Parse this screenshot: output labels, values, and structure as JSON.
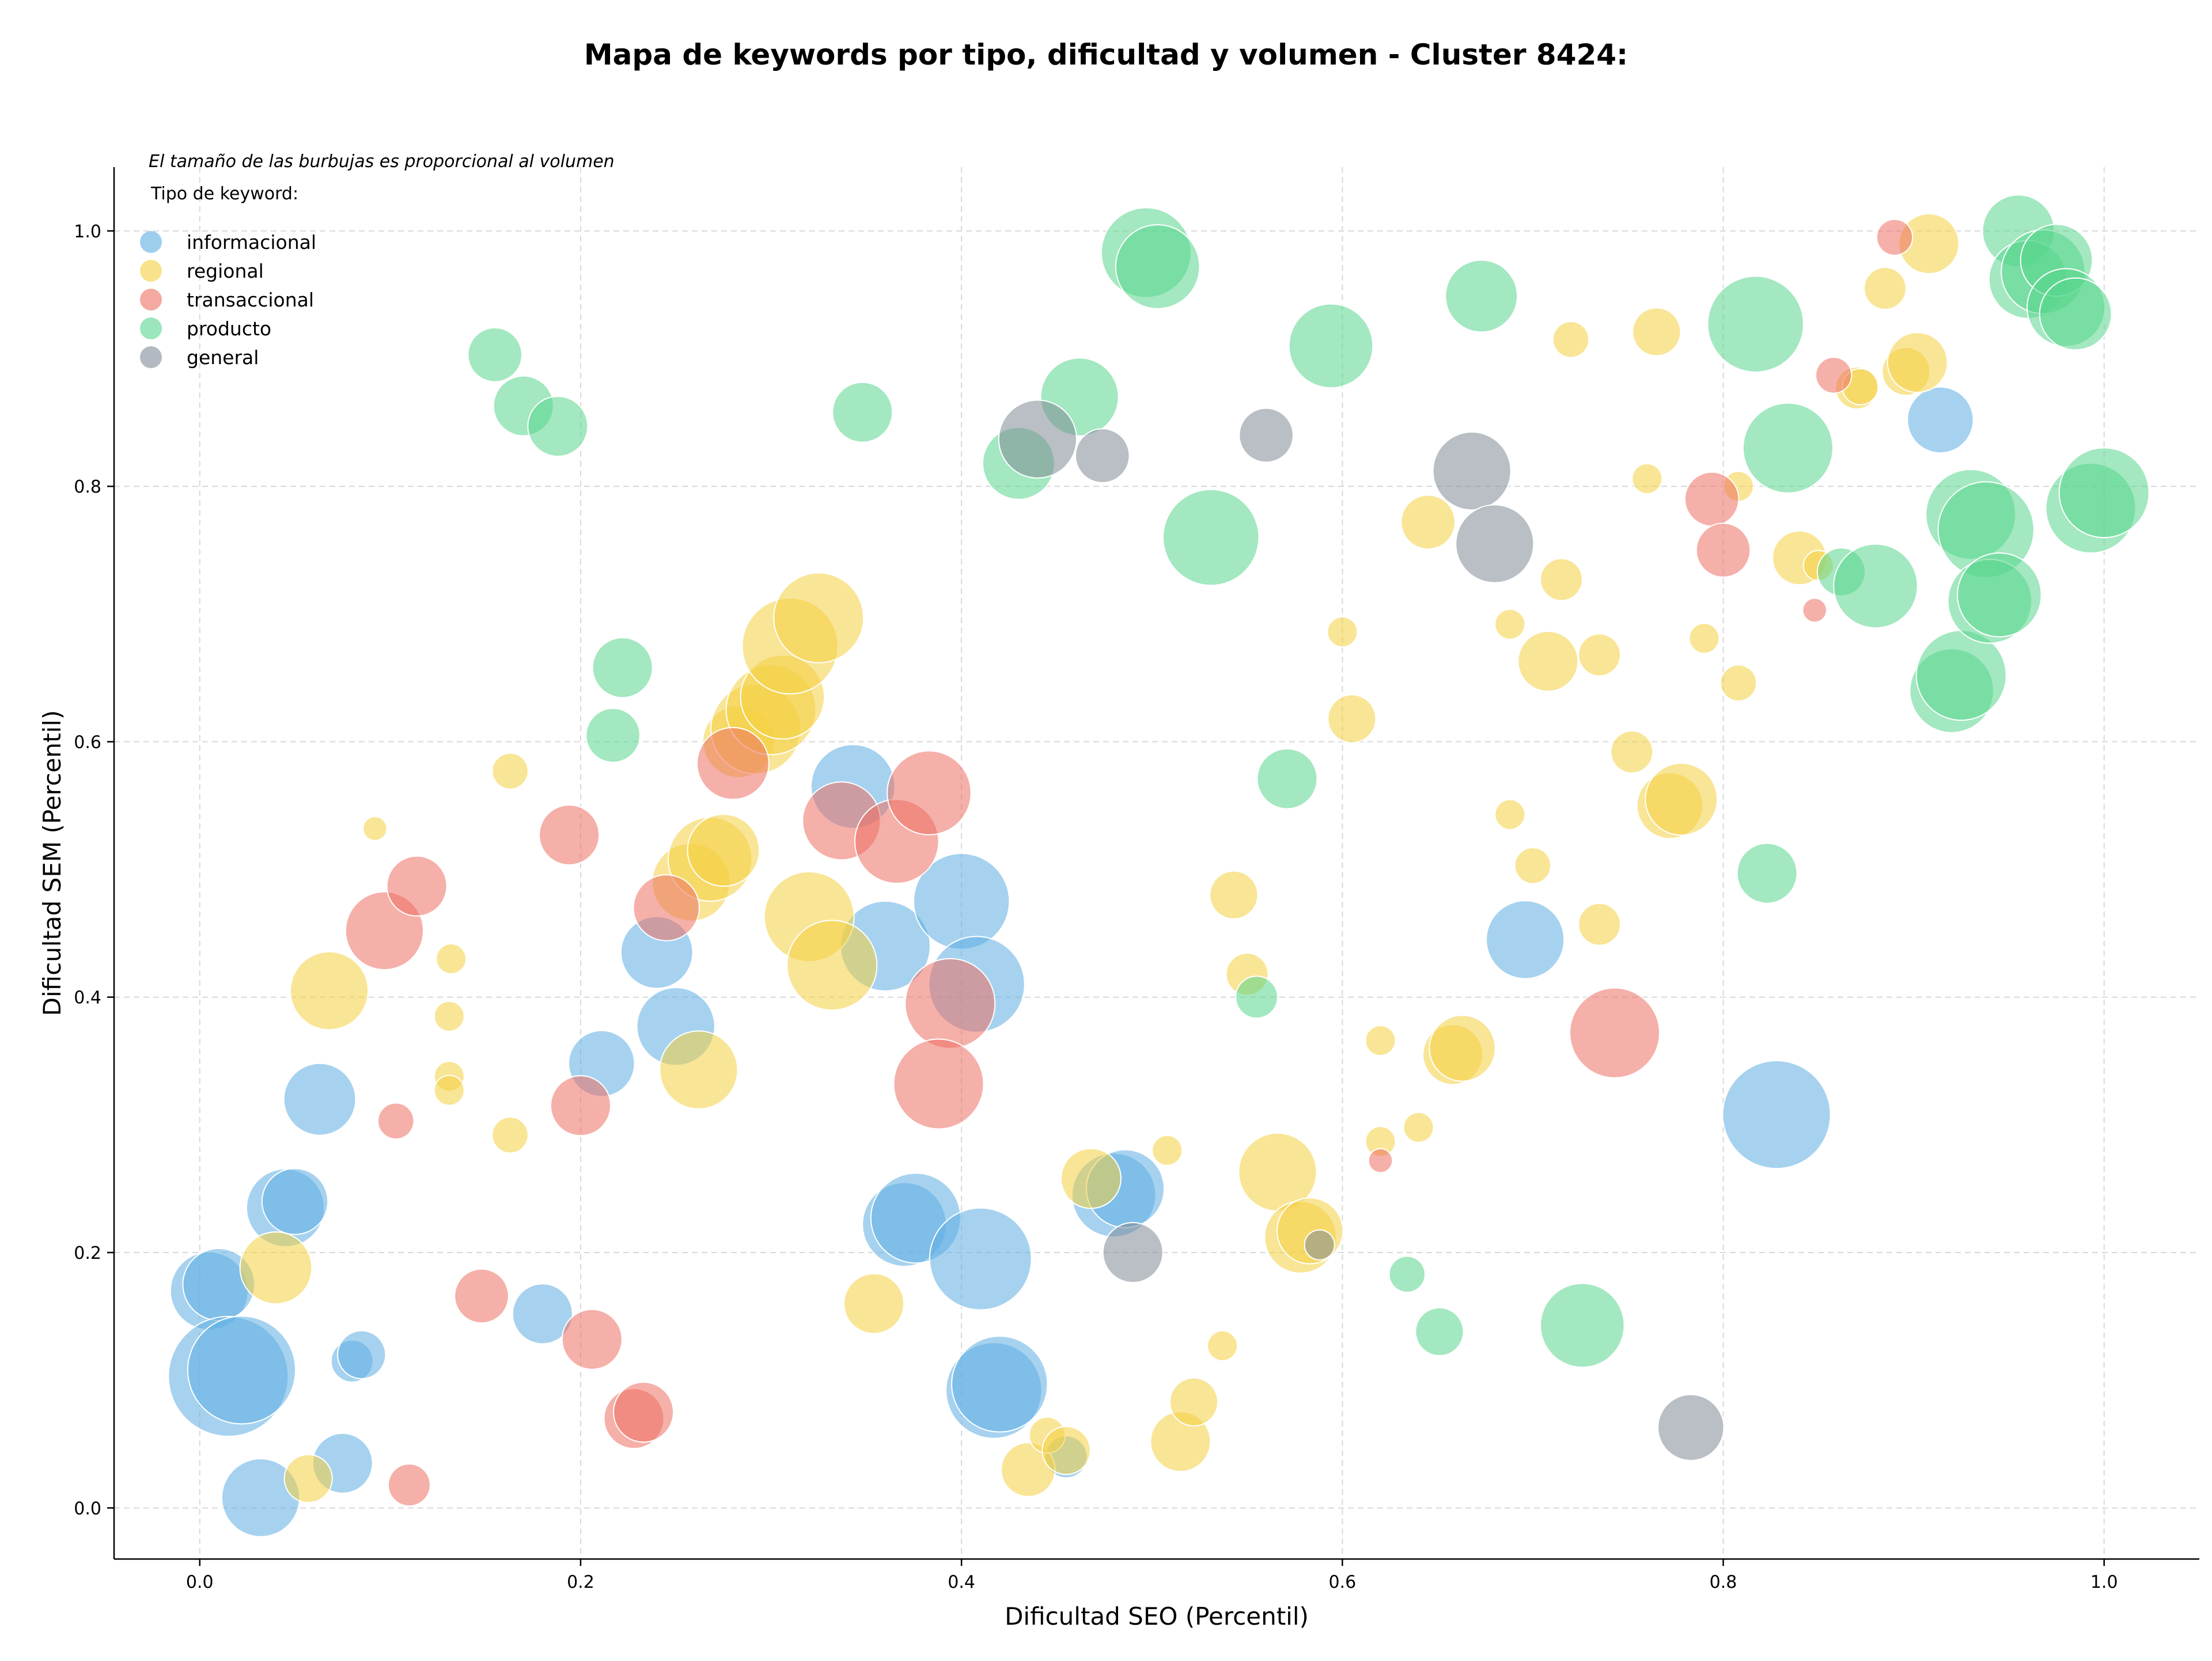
{
  "chart_data": {
    "type": "scatter",
    "title": "Mapa de keywords por tipo, dificultad y volumen - Cluster 8424:",
    "xlabel": "Dificultad SEO (Percentil)",
    "ylabel": "Dificultad SEM (Percentil)",
    "xlim": [
      -0.045,
      1.05
    ],
    "ylim": [
      -0.04,
      1.05
    ],
    "xticks": [
      "0.0",
      "0.2",
      "0.4",
      "0.6",
      "0.8",
      "1.0"
    ],
    "yticks": [
      "0.0",
      "0.2",
      "0.4",
      "0.6",
      "0.8",
      "1.0"
    ],
    "grid": true,
    "note": "El tamaño de las burbujas es proporcional al volumen",
    "legend": {
      "title": "Tipo de keyword:",
      "placement": "top-left"
    },
    "series": [
      {
        "name": "informacional",
        "color": "#5dade2",
        "points": [
          [
            0.005,
            0.17,
            1.3
          ],
          [
            0.01,
            0.175,
            1.2
          ],
          [
            0.015,
            0.103,
            2.0
          ],
          [
            0.022,
            0.108,
            1.8
          ],
          [
            0.032,
            0.008,
            1.3
          ],
          [
            0.045,
            0.235,
            1.3
          ],
          [
            0.05,
            0.24,
            1.1
          ],
          [
            0.063,
            0.32,
            1.2
          ],
          [
            0.075,
            0.035,
            1.0
          ],
          [
            0.08,
            0.115,
            0.7
          ],
          [
            0.085,
            0.12,
            0.8
          ],
          [
            0.18,
            0.152,
            1.0
          ],
          [
            0.211,
            0.348,
            1.1
          ],
          [
            0.24,
            0.435,
            1.2
          ],
          [
            0.25,
            0.377,
            1.3
          ],
          [
            0.343,
            0.565,
            1.4
          ],
          [
            0.36,
            0.44,
            1.5
          ],
          [
            0.37,
            0.222,
            1.4
          ],
          [
            0.376,
            0.227,
            1.5
          ],
          [
            0.4,
            0.475,
            1.6
          ],
          [
            0.41,
            0.195,
            1.7
          ],
          [
            0.408,
            0.41,
            1.6
          ],
          [
            0.417,
            0.092,
            1.6
          ],
          [
            0.42,
            0.097,
            1.6
          ],
          [
            0.455,
            0.04,
            0.7
          ],
          [
            0.48,
            0.245,
            1.4
          ],
          [
            0.486,
            0.25,
            1.3
          ],
          [
            0.696,
            0.445,
            1.3
          ],
          [
            0.828,
            0.308,
            1.8
          ],
          [
            0.914,
            0.852,
            1.1
          ]
        ]
      },
      {
        "name": "regional",
        "color": "#f4d03f",
        "points": [
          [
            0.04,
            0.188,
            1.2
          ],
          [
            0.057,
            0.023,
            0.8
          ],
          [
            0.068,
            0.405,
            1.3
          ],
          [
            0.092,
            0.532,
            0.4
          ],
          [
            0.131,
            0.338,
            0.5
          ],
          [
            0.131,
            0.327,
            0.5
          ],
          [
            0.131,
            0.385,
            0.5
          ],
          [
            0.132,
            0.43,
            0.5
          ],
          [
            0.163,
            0.577,
            0.6
          ],
          [
            0.163,
            0.292,
            0.6
          ],
          [
            0.262,
            0.343,
            1.3
          ],
          [
            0.258,
            0.49,
            1.3
          ],
          [
            0.268,
            0.508,
            1.4
          ],
          [
            0.275,
            0.515,
            1.2
          ],
          [
            0.283,
            0.6,
            1.2
          ],
          [
            0.292,
            0.61,
            1.5
          ],
          [
            0.3,
            0.625,
            1.5
          ],
          [
            0.306,
            0.635,
            1.4
          ],
          [
            0.31,
            0.675,
            1.6
          ],
          [
            0.325,
            0.697,
            1.5
          ],
          [
            0.32,
            0.463,
            1.5
          ],
          [
            0.332,
            0.425,
            1.5
          ],
          [
            0.354,
            0.16,
            1.0
          ],
          [
            0.435,
            0.03,
            0.9
          ],
          [
            0.445,
            0.057,
            0.6
          ],
          [
            0.455,
            0.045,
            0.8
          ],
          [
            0.468,
            0.258,
            1.0
          ],
          [
            0.508,
            0.28,
            0.5
          ],
          [
            0.515,
            0.052,
            1.0
          ],
          [
            0.522,
            0.083,
            0.8
          ],
          [
            0.537,
            0.127,
            0.5
          ],
          [
            0.543,
            0.48,
            0.8
          ],
          [
            0.55,
            0.418,
            0.7
          ],
          [
            0.566,
            0.263,
            1.3
          ],
          [
            0.578,
            0.212,
            1.2
          ],
          [
            0.583,
            0.217,
            1.1
          ],
          [
            0.6,
            0.686,
            0.5
          ],
          [
            0.605,
            0.618,
            0.8
          ],
          [
            0.62,
            0.366,
            0.5
          ],
          [
            0.62,
            0.287,
            0.5
          ],
          [
            0.64,
            0.298,
            0.5
          ],
          [
            0.645,
            0.772,
            0.9
          ],
          [
            0.658,
            0.355,
            1.0
          ],
          [
            0.663,
            0.36,
            1.1
          ],
          [
            0.688,
            0.692,
            0.5
          ],
          [
            0.688,
            0.543,
            0.5
          ],
          [
            0.7,
            0.503,
            0.6
          ],
          [
            0.708,
            0.663,
            1.0
          ],
          [
            0.715,
            0.727,
            0.7
          ],
          [
            0.72,
            0.915,
            0.6
          ],
          [
            0.735,
            0.457,
            0.7
          ],
          [
            0.735,
            0.668,
            0.7
          ],
          [
            0.752,
            0.592,
            0.7
          ],
          [
            0.76,
            0.806,
            0.5
          ],
          [
            0.765,
            0.921,
            0.8
          ],
          [
            0.772,
            0.55,
            1.1
          ],
          [
            0.778,
            0.555,
            1.2
          ],
          [
            0.79,
            0.681,
            0.5
          ],
          [
            0.808,
            0.8,
            0.5
          ],
          [
            0.808,
            0.646,
            0.6
          ],
          [
            0.84,
            0.744,
            0.9
          ],
          [
            0.85,
            0.738,
            0.5
          ],
          [
            0.87,
            0.877,
            0.7
          ],
          [
            0.872,
            0.878,
            0.6
          ],
          [
            0.885,
            0.955,
            0.7
          ],
          [
            0.896,
            0.89,
            0.8
          ],
          [
            0.902,
            0.897,
            1.0
          ],
          [
            0.908,
            0.99,
            1.0
          ]
        ]
      },
      {
        "name": "transaccional",
        "color": "#ec7063",
        "points": [
          [
            0.097,
            0.452,
            1.3
          ],
          [
            0.103,
            0.303,
            0.6
          ],
          [
            0.11,
            0.018,
            0.7
          ],
          [
            0.114,
            0.487,
            1.0
          ],
          [
            0.148,
            0.166,
            0.9
          ],
          [
            0.194,
            0.527,
            1.0
          ],
          [
            0.2,
            0.315,
            1.0
          ],
          [
            0.206,
            0.132,
            1.0
          ],
          [
            0.228,
            0.07,
            1.0
          ],
          [
            0.233,
            0.075,
            1.0
          ],
          [
            0.245,
            0.47,
            1.1
          ],
          [
            0.28,
            0.583,
            1.2
          ],
          [
            0.337,
            0.538,
            1.3
          ],
          [
            0.366,
            0.522,
            1.4
          ],
          [
            0.383,
            0.56,
            1.4
          ],
          [
            0.394,
            0.395,
            1.5
          ],
          [
            0.388,
            0.332,
            1.5
          ],
          [
            0.62,
            0.272,
            0.4
          ],
          [
            0.743,
            0.372,
            1.5
          ],
          [
            0.794,
            0.79,
            0.9
          ],
          [
            0.8,
            0.75,
            0.9
          ],
          [
            0.848,
            0.703,
            0.4
          ],
          [
            0.858,
            0.887,
            0.6
          ],
          [
            0.89,
            0.995,
            0.6
          ]
        ]
      },
      {
        "name": "producto",
        "color": "#58d68d",
        "points": [
          [
            0.155,
            0.903,
            0.9
          ],
          [
            0.17,
            0.863,
            1.0
          ],
          [
            0.188,
            0.847,
            1.0
          ],
          [
            0.217,
            0.605,
            0.9
          ],
          [
            0.222,
            0.658,
            1.0
          ],
          [
            0.348,
            0.858,
            1.0
          ],
          [
            0.43,
            0.818,
            1.2
          ],
          [
            0.462,
            0.87,
            1.3
          ],
          [
            0.497,
            0.983,
            1.5
          ],
          [
            0.503,
            0.972,
            1.4
          ],
          [
            0.531,
            0.76,
            1.6
          ],
          [
            0.571,
            0.571,
            1.0
          ],
          [
            0.555,
            0.4,
            0.7
          ],
          [
            0.594,
            0.91,
            1.4
          ],
          [
            0.634,
            0.183,
            0.6
          ],
          [
            0.651,
            0.138,
            0.8
          ],
          [
            0.673,
            0.949,
            1.2
          ],
          [
            0.726,
            0.143,
            1.4
          ],
          [
            0.817,
            0.927,
            1.6
          ],
          [
            0.823,
            0.497,
            1.0
          ],
          [
            0.834,
            0.83,
            1.5
          ],
          [
            0.862,
            0.733,
            0.8
          ],
          [
            0.88,
            0.722,
            1.4
          ],
          [
            0.92,
            0.64,
            1.4
          ],
          [
            0.925,
            0.652,
            1.5
          ],
          [
            0.93,
            0.778,
            1.5
          ],
          [
            0.938,
            0.766,
            1.6
          ],
          [
            0.94,
            0.71,
            1.4
          ],
          [
            0.945,
            0.715,
            1.4
          ],
          [
            0.955,
            1.0,
            1.2
          ],
          [
            0.96,
            0.962,
            1.3
          ],
          [
            0.968,
            0.968,
            1.4
          ],
          [
            0.975,
            0.977,
            1.2
          ],
          [
            0.98,
            0.94,
            1.3
          ],
          [
            0.985,
            0.935,
            1.2
          ],
          [
            0.993,
            0.783,
            1.5
          ],
          [
            1.0,
            0.795,
            1.5
          ]
        ]
      },
      {
        "name": "general",
        "color": "#808b96",
        "points": [
          [
            0.44,
            0.837,
            1.3
          ],
          [
            0.474,
            0.824,
            0.9
          ],
          [
            0.49,
            0.2,
            1.0
          ],
          [
            0.56,
            0.84,
            0.9
          ],
          [
            0.588,
            0.206,
            0.5
          ],
          [
            0.668,
            0.812,
            1.3
          ],
          [
            0.68,
            0.755,
            1.3
          ],
          [
            0.783,
            0.063,
            1.1
          ]
        ]
      }
    ]
  }
}
